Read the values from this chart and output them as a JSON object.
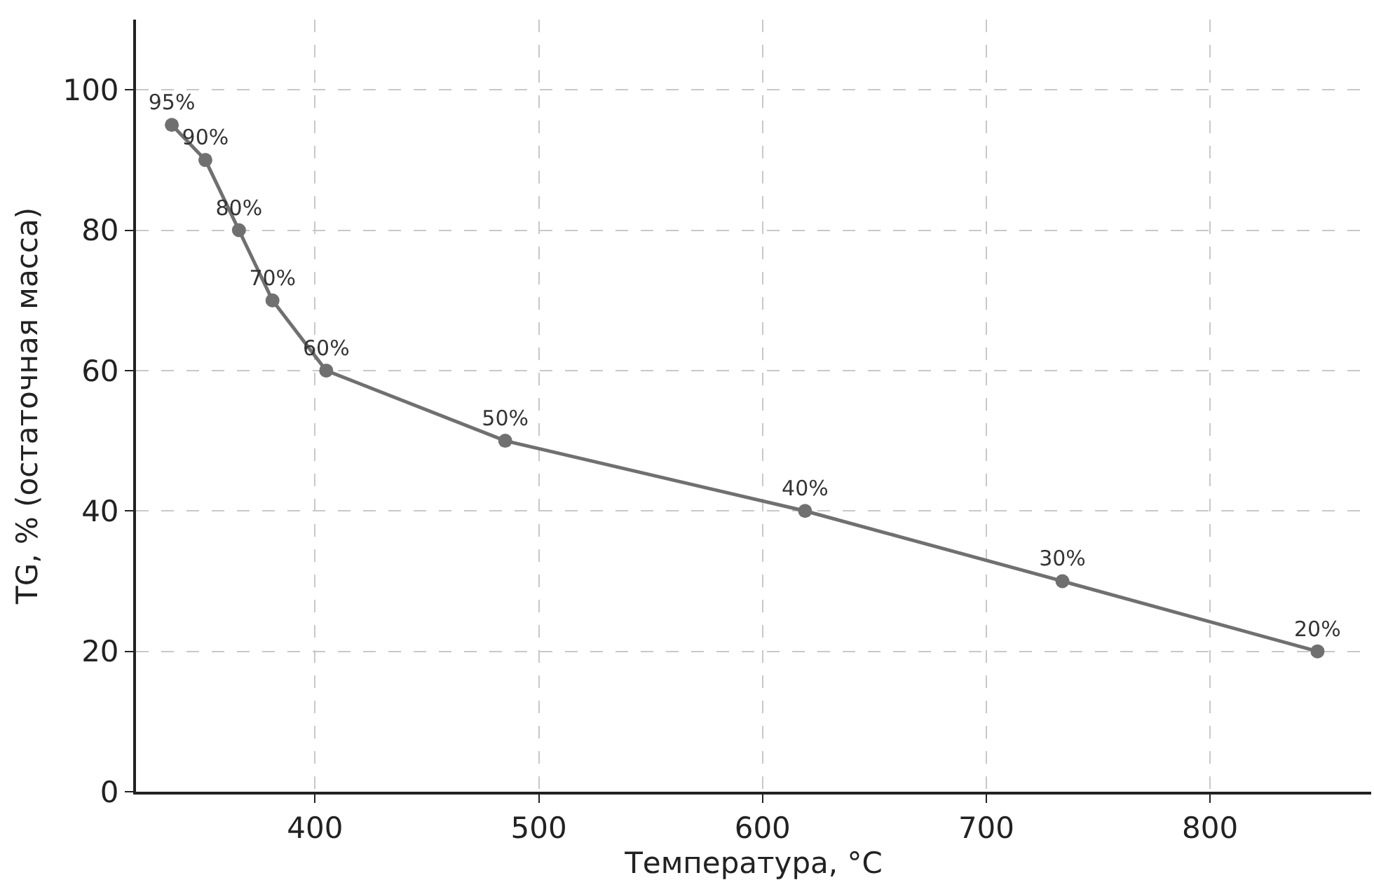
{
  "chart_data": {
    "type": "line",
    "xlabel": "Температура, °C",
    "ylabel": "TG, % (остаточная масса)",
    "x": [
      336,
      351,
      366,
      381,
      405,
      485,
      619,
      734,
      848
    ],
    "series": [
      {
        "color": "#707070",
        "values": [
          95,
          90,
          80,
          70,
          60,
          50,
          40,
          30,
          20
        ],
        "value_labels": [
          "95%",
          "90%",
          "80%",
          "70%",
          "60%",
          "50%",
          "40%",
          "30%",
          "20%"
        ]
      }
    ],
    "xlim": [
      320,
      872
    ],
    "xticks": [
      400,
      500,
      600,
      700,
      800
    ],
    "ylim": [
      0,
      110
    ],
    "yticks": [
      0,
      20,
      40,
      60,
      80,
      100
    ],
    "grid": true,
    "marker": "circle",
    "line_style": "solid"
  }
}
